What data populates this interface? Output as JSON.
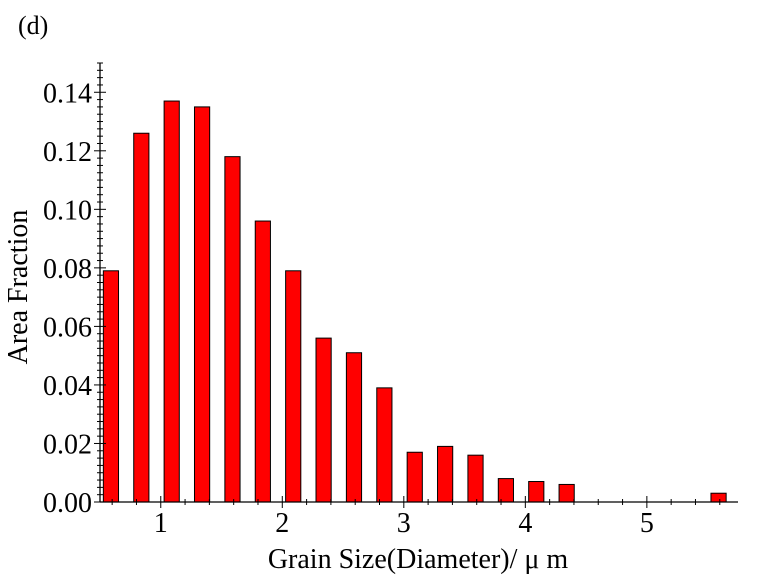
{
  "panel_label": "(d)",
  "chart_data": {
    "type": "bar",
    "title": "",
    "xlabel": "Grain Size(Diameter)/ μ m",
    "ylabel": "Area Fraction",
    "xlim": [
      0.5,
      5.75
    ],
    "ylim": [
      0,
      0.15
    ],
    "x_ticks": [
      1,
      2,
      3,
      4,
      5
    ],
    "y_ticks": [
      0.0,
      0.02,
      0.04,
      0.06,
      0.08,
      0.1,
      0.12,
      0.14
    ],
    "y_tick_labels": [
      "0.00",
      "0.02",
      "0.04",
      "0.06",
      "0.08",
      "0.10",
      "0.12",
      "0.14"
    ],
    "x": [
      0.59,
      0.84,
      1.09,
      1.34,
      1.59,
      1.84,
      2.09,
      2.34,
      2.59,
      2.84,
      3.09,
      3.34,
      3.59,
      3.84,
      4.09,
      4.34,
      5.59
    ],
    "values": [
      0.079,
      0.126,
      0.137,
      0.135,
      0.118,
      0.096,
      0.079,
      0.056,
      0.051,
      0.039,
      0.017,
      0.019,
      0.016,
      0.008,
      0.007,
      0.006,
      0.003
    ],
    "bar_width": 0.125,
    "bar_color": "#ff0000",
    "grid": false,
    "legend": "none"
  }
}
